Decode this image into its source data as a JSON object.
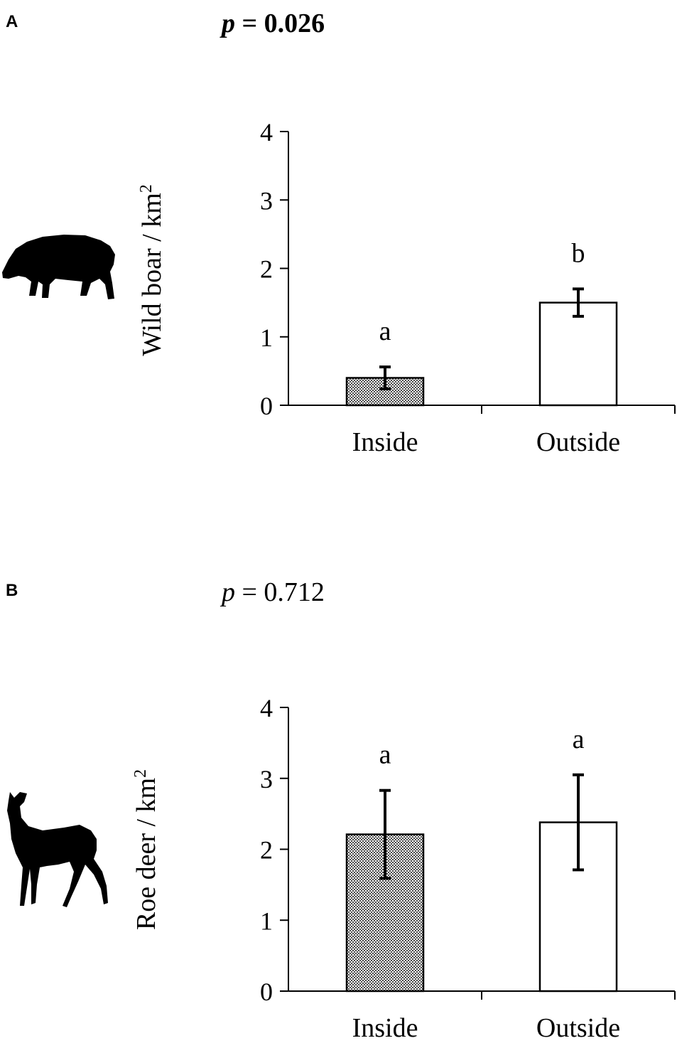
{
  "chart_data": [
    {
      "type": "bar",
      "panel": "A",
      "p_label": "p",
      "p_text": " = 0.026",
      "p_bold": true,
      "ylabel": "Wild boar / km",
      "ylabel_sup": "2",
      "icon": "wild-boar-icon",
      "categories": [
        "Inside",
        "Outside"
      ],
      "values": [
        0.4,
        1.5
      ],
      "error": [
        0.16,
        0.2
      ],
      "significance": [
        "a",
        "b"
      ],
      "ylim": [
        0,
        4
      ],
      "yticks": [
        0,
        1,
        2,
        3,
        4
      ],
      "fills": [
        "pattern",
        "#ffffff"
      ]
    },
    {
      "type": "bar",
      "panel": "B",
      "p_label": "p",
      "p_text": " = 0.712",
      "p_bold": false,
      "ylabel": "Roe deer / km",
      "ylabel_sup": "2",
      "icon": "roe-deer-icon",
      "categories": [
        "Inside",
        "Outside"
      ],
      "values": [
        2.21,
        2.38
      ],
      "error": [
        0.62,
        0.67
      ],
      "significance": [
        "a",
        "a"
      ],
      "ylim": [
        0,
        4
      ],
      "yticks": [
        0,
        1,
        2,
        3,
        4
      ],
      "fills": [
        "pattern",
        "#ffffff"
      ]
    }
  ]
}
